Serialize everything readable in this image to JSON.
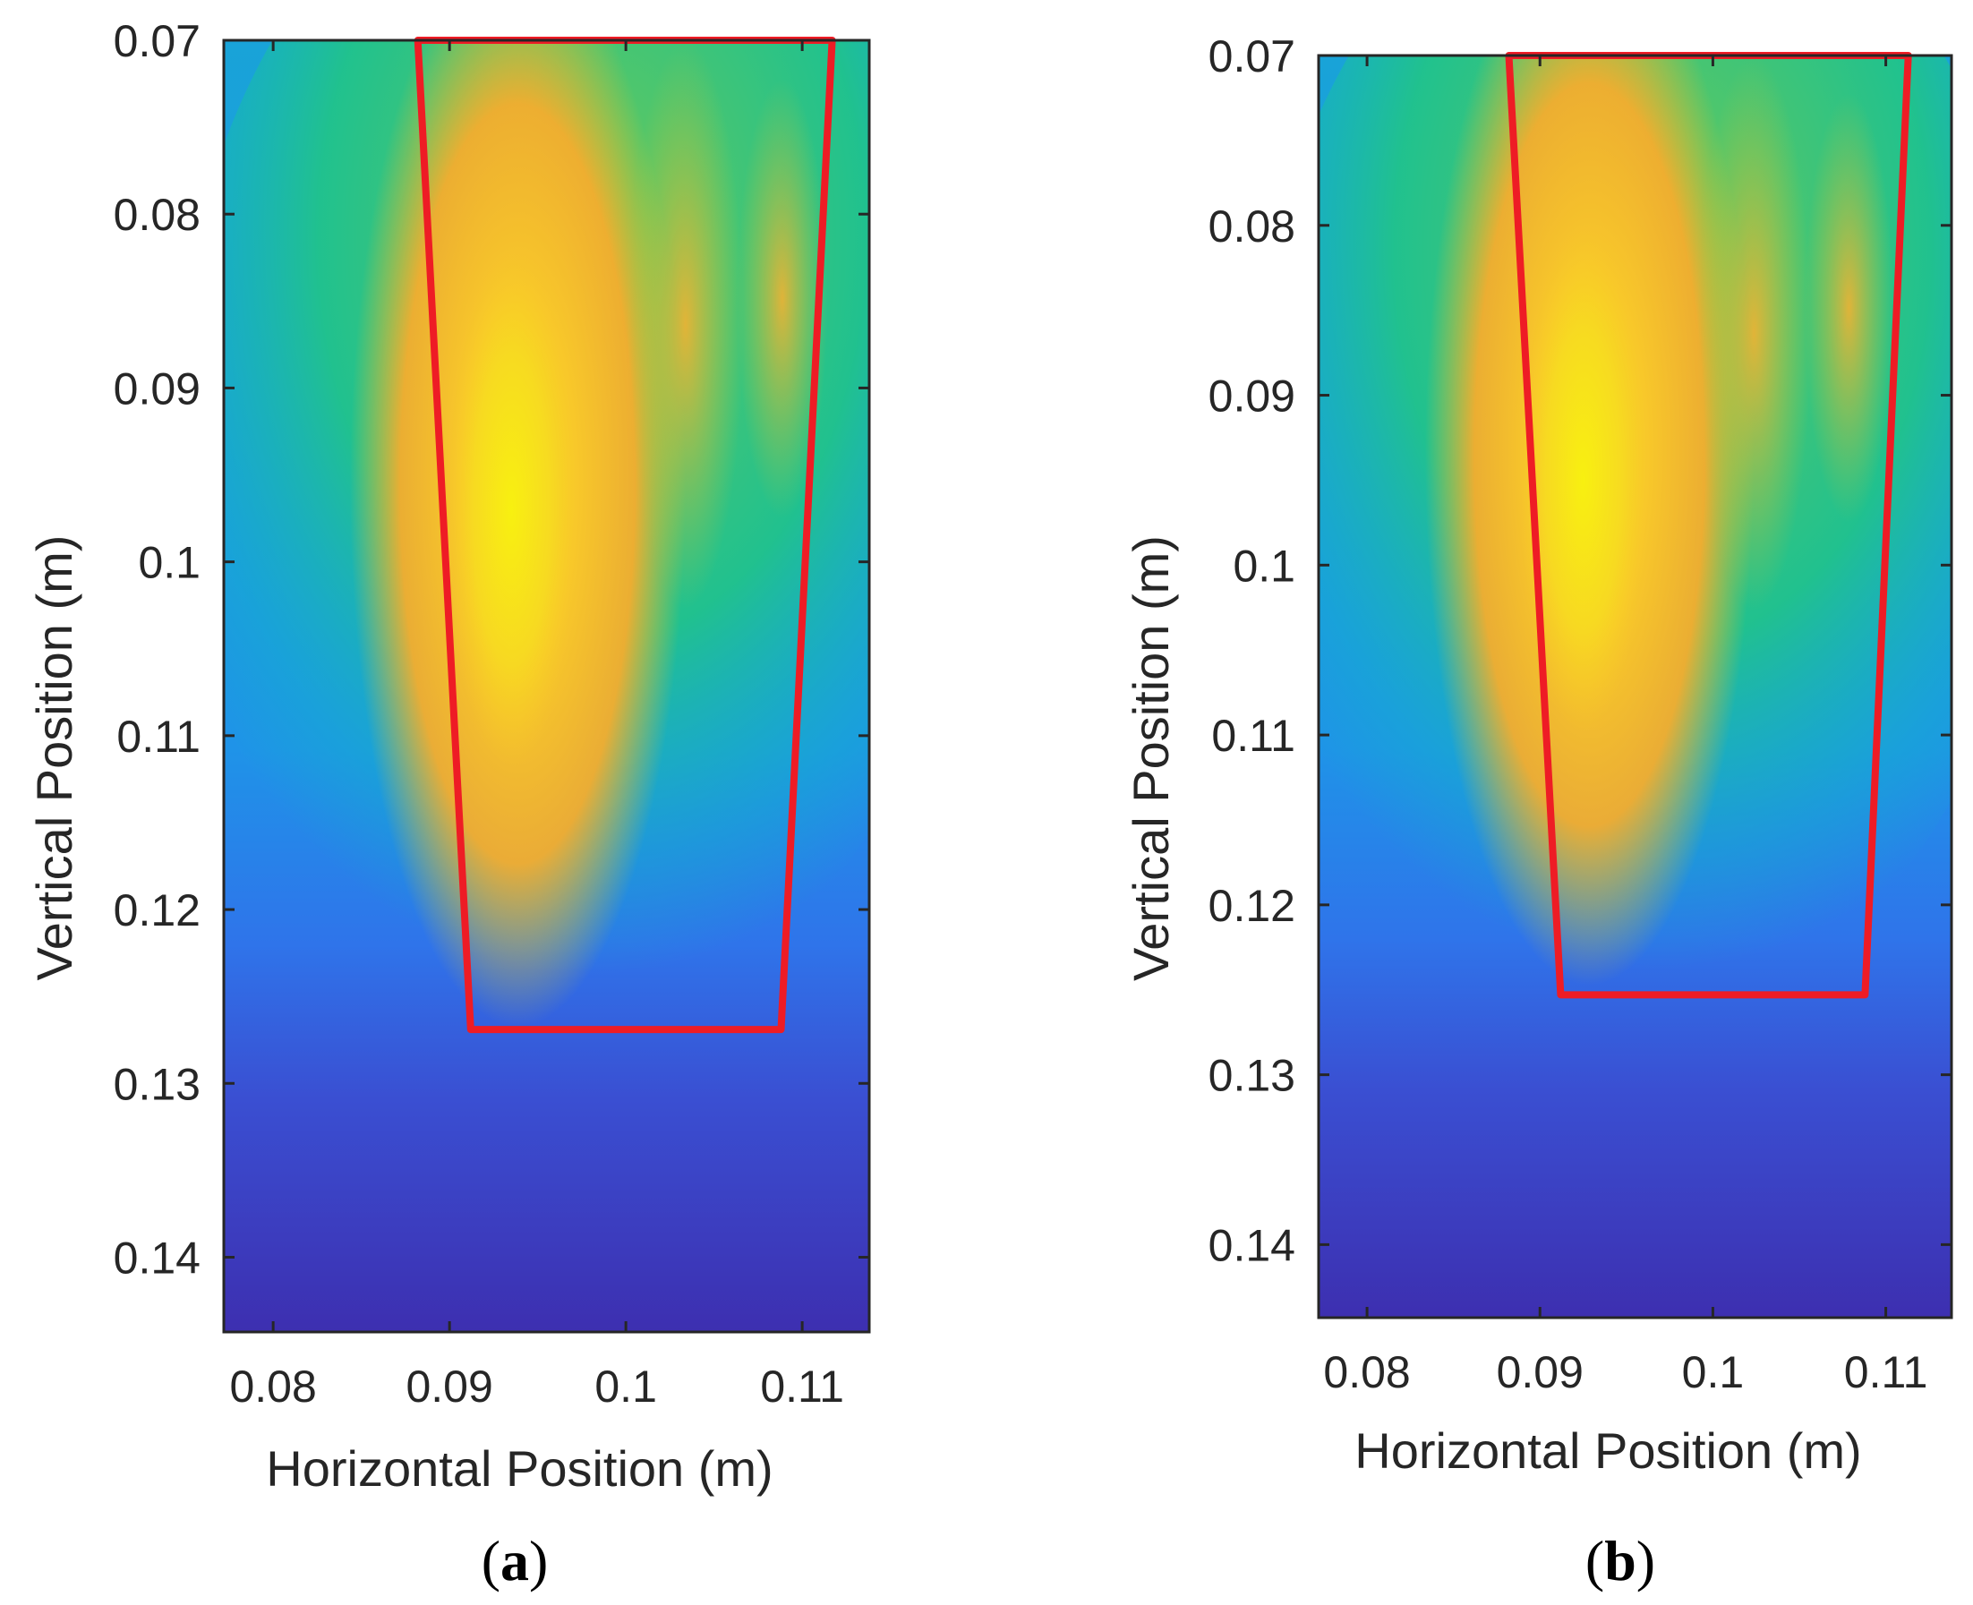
{
  "colors": {
    "outline": "#ee1c25",
    "axis": "#262626",
    "colormap": [
      "#3d2fb0",
      "#3658e0",
      "#1f8ff0",
      "#12b3c8",
      "#21c38a",
      "#7ccb45",
      "#d7c230",
      "#f8ad2a",
      "#f5e81a"
    ]
  },
  "chart_data": [
    {
      "type": "heatmap",
      "panel_label": "a",
      "xlabel": "Horizontal Position (m)",
      "ylabel": "Vertical Position (m)",
      "xlim": [
        0.0772,
        0.1138
      ],
      "ylim": [
        0.07,
        0.1443
      ],
      "y_reversed": true,
      "xticks": [
        0.08,
        0.09,
        0.1,
        0.11
      ],
      "xtick_labels": [
        "0.08",
        "0.09",
        "0.1",
        "0.11"
      ],
      "yticks": [
        0.07,
        0.08,
        0.09,
        0.1,
        0.11,
        0.12,
        0.13,
        0.14
      ],
      "ytick_labels": [
        "0.07",
        "0.08",
        "0.09",
        "0.1",
        "0.11",
        "0.12",
        "0.13",
        "0.14"
      ],
      "colormap": "parula",
      "hotspot": {
        "x": 0.0935,
        "y": 0.097,
        "peak": "yellow"
      },
      "outline": {
        "shape": "trapezoid",
        "points": [
          [
            0.0882,
            0.07
          ],
          [
            0.1117,
            0.07
          ],
          [
            0.1088,
            0.1269
          ],
          [
            0.0912,
            0.1269
          ]
        ]
      }
    },
    {
      "type": "heatmap",
      "panel_label": "b",
      "xlabel": "Horizontal Position (m)",
      "ylabel": "Vertical Position (m)",
      "xlim": [
        0.0772,
        0.1138
      ],
      "ylim": [
        0.07,
        0.1443
      ],
      "y_reversed": true,
      "xticks": [
        0.08,
        0.09,
        0.1,
        0.11
      ],
      "xtick_labels": [
        "0.08",
        "0.09",
        "0.1",
        "0.11"
      ],
      "yticks": [
        0.07,
        0.08,
        0.09,
        0.1,
        0.11,
        0.12,
        0.13,
        0.14
      ],
      "ytick_labels": [
        "0.07",
        "0.08",
        "0.09",
        "0.1",
        "0.11",
        "0.12",
        "0.13",
        "0.14"
      ],
      "colormap": "parula",
      "hotspot": {
        "x": 0.0925,
        "y": 0.095,
        "peak": "yellow"
      },
      "outline": {
        "shape": "trapezoid",
        "points": [
          [
            0.0882,
            0.07
          ],
          [
            0.1113,
            0.07
          ],
          [
            0.1088,
            0.1253
          ],
          [
            0.0912,
            0.1253
          ]
        ]
      }
    }
  ]
}
